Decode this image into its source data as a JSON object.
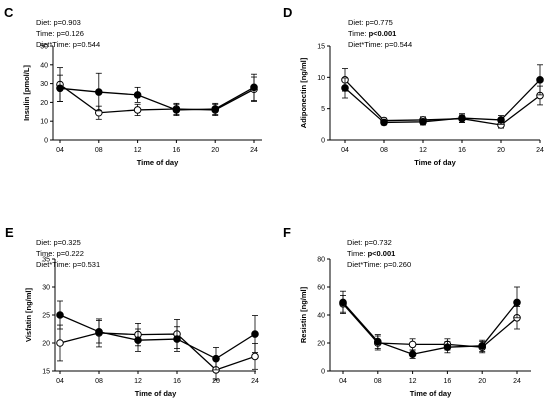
{
  "chart_data": [
    {
      "type": "line",
      "panel_label": "C",
      "stats": {
        "diet": "Diet: p=0.903",
        "time_prefix": "Time: ",
        "time_value": "p=0.126",
        "time_bold": false,
        "interaction": "Diet*Time: p=0.544"
      },
      "xlabel": "Time of day",
      "ylabel": "Insulin [pmol/L]",
      "categories": [
        "04",
        "08",
        "12",
        "16",
        "20",
        "24"
      ],
      "ylim": [
        0,
        50
      ],
      "yticks": [
        0,
        10,
        20,
        30,
        40,
        50
      ],
      "series": [
        {
          "marker": "filled",
          "values": [
            27.5,
            25.5,
            24,
            16,
            16.5,
            28
          ],
          "error": [
            7,
            10,
            4,
            3,
            3,
            7
          ]
        },
        {
          "marker": "open",
          "values": [
            29.5,
            14.5,
            16,
            16.5,
            16,
            27
          ],
          "error": [
            9,
            3.5,
            3,
            3,
            3,
            6.5
          ]
        }
      ]
    },
    {
      "type": "line",
      "panel_label": "D",
      "stats": {
        "diet": "Diet: p=0.775",
        "time_prefix": "Time: ",
        "time_value": "p<0.001",
        "time_bold": true,
        "interaction": "Diet*Time: p=0.544"
      },
      "xlabel": "Time of day",
      "ylabel": "Adiponectin [ng/ml]",
      "categories": [
        "04",
        "08",
        "12",
        "16",
        "20",
        "24"
      ],
      "ylim": [
        0,
        15
      ],
      "yticks": [
        0,
        5,
        10,
        15
      ],
      "series": [
        {
          "marker": "filled",
          "values": [
            8.3,
            2.8,
            2.9,
            3.5,
            3.2,
            9.6
          ],
          "error": [
            1.6,
            0.4,
            0.5,
            0.7,
            0.7,
            2.4
          ]
        },
        {
          "marker": "open",
          "values": [
            9.6,
            3.1,
            3.2,
            3.4,
            2.4,
            7.1
          ],
          "error": [
            1.8,
            0.4,
            0.5,
            0.6,
            0.5,
            1.5
          ]
        }
      ]
    },
    {
      "type": "line",
      "panel_label": "E",
      "stats": {
        "diet": "Diet: p=0.325",
        "time_prefix": "Time: ",
        "time_value": "p=0.222",
        "time_bold": false,
        "interaction": "Diet*Time: p=0.531"
      },
      "xlabel": "Time of day",
      "ylabel": "Visfatin [ng/ml]",
      "categories": [
        "04",
        "08",
        "12",
        "16",
        "20",
        "24"
      ],
      "ylim": [
        15,
        35
      ],
      "yticks": [
        15,
        20,
        25,
        30,
        35
      ],
      "series": [
        {
          "marker": "filled",
          "values": [
            25,
            22,
            20.5,
            20.7,
            17.2,
            21.6
          ],
          "error": [
            2.5,
            2,
            2,
            2.2,
            2,
            3.3
          ]
        },
        {
          "marker": "open",
          "values": [
            20,
            21.8,
            21.5,
            21.6,
            15.2,
            17.6
          ],
          "error": [
            3.2,
            2.5,
            2,
            2.6,
            1.8,
            2.3
          ]
        }
      ]
    },
    {
      "type": "line",
      "panel_label": "F",
      "stats": {
        "diet": "Diet: p=0.732",
        "time_prefix": "Time: ",
        "time_value": "p<0.001",
        "time_bold": true,
        "interaction": "Diet*Time: p=0.260"
      },
      "xlabel": "Time of day",
      "ylabel": "Resistin [ng/ml]",
      "categories": [
        "04",
        "08",
        "12",
        "16",
        "20",
        "24"
      ],
      "ylim": [
        0,
        80
      ],
      "yticks": [
        0,
        20,
        40,
        60,
        80
      ],
      "series": [
        {
          "marker": "filled",
          "values": [
            49,
            21,
            12,
            17,
            18,
            49
          ],
          "error": [
            8,
            5,
            3,
            4,
            4,
            11
          ]
        },
        {
          "marker": "open",
          "values": [
            48,
            20,
            19,
            19,
            17,
            38
          ],
          "error": [
            6,
            5,
            4,
            4,
            4,
            8
          ]
        }
      ]
    }
  ]
}
